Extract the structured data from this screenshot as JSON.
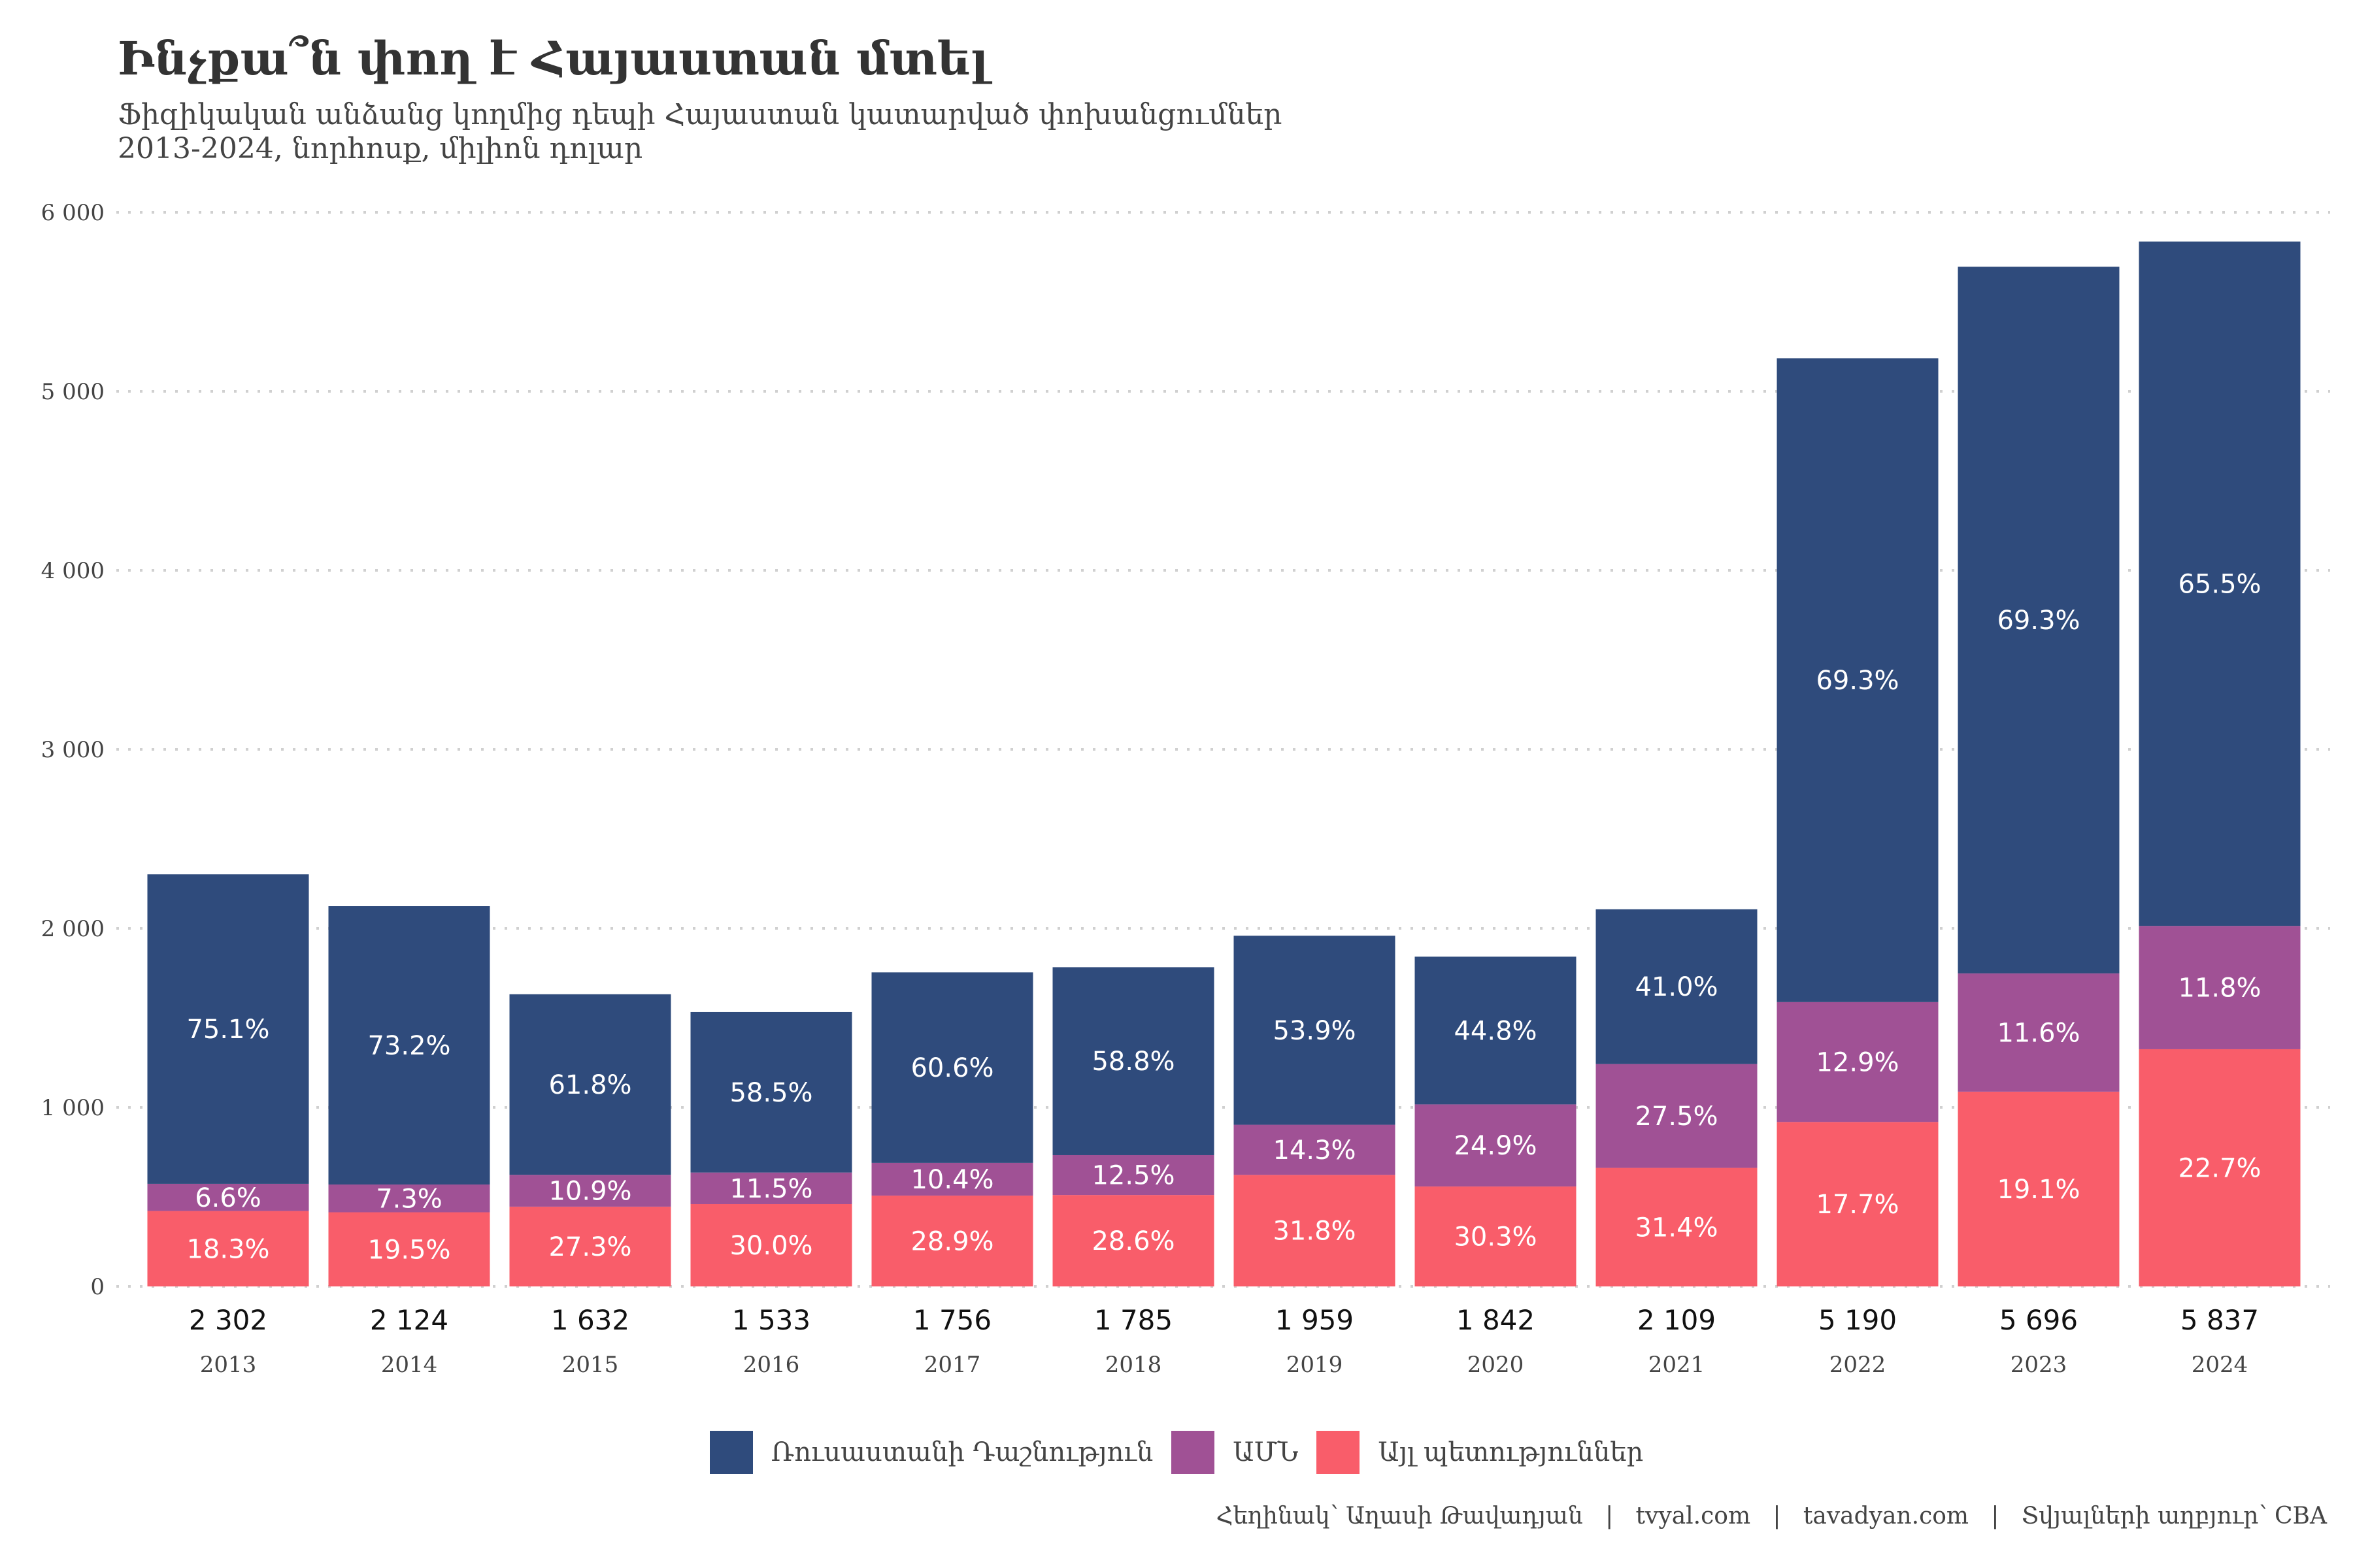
{
  "header": {
    "title": "Ինչքա՞ն փող է Հայաստան մտել",
    "subtitle_line1": "Ֆիզիկական անձանց կողմից դեպի Հայաստան կատարված փոխանցումներ",
    "subtitle_line2": "2013-2024, նորհոսք, միլիոն դոլար"
  },
  "legend": [
    {
      "label": "Ռուսաստանի Դաշնություն",
      "color": "#2f4b7c"
    },
    {
      "label": "ԱՄՆ",
      "color": "#a05195"
    },
    {
      "label": "Այլ պետություններ",
      "color": "#f95d6a"
    }
  ],
  "caption": "Հեղինակ՝ Աղասի Թավադյան   |   tvyal.com   |   tavadyan.com   |   Տվյալների աղբյուր՝ CBA",
  "chart_data": {
    "type": "bar",
    "stacked": true,
    "title": "Ինչքա՞ն փող է Հայաստան մտել",
    "subtitle": "Ֆիզիկական անձանց կողմից դեպի Հայաստան կատարված փոխանցումներ 2013-2024, նորհոսք, միլիոն դոլար",
    "xlabel": "",
    "ylabel": "",
    "ylim": [
      0,
      6000
    ],
    "yticks": [
      0,
      1000,
      2000,
      3000,
      4000,
      5000,
      6000
    ],
    "ytick_labels": [
      "0",
      "1 000",
      "2 000",
      "3 000",
      "4 000",
      "5 000",
      "6 000"
    ],
    "grid": "horizontal-dotted",
    "legend_position": "bottom",
    "categories": [
      "2013",
      "2014",
      "2015",
      "2016",
      "2017",
      "2018",
      "2019",
      "2020",
      "2021",
      "2022",
      "2023",
      "2024"
    ],
    "totals": [
      2302,
      2124,
      1632,
      1533,
      1756,
      1785,
      1959,
      1842,
      2109,
      5190,
      5696,
      5837
    ],
    "total_labels": [
      "2 302",
      "2 124",
      "1 632",
      "1 533",
      "1 756",
      "1 785",
      "1 959",
      "1 842",
      "2 109",
      "5 190",
      "5 696",
      "5 837"
    ],
    "series": [
      {
        "name": "Այլ պետություններ",
        "color": "#f95d6a",
        "share_pct": [
          18.3,
          19.5,
          27.3,
          30.0,
          28.9,
          28.6,
          31.8,
          30.3,
          31.4,
          17.7,
          19.1,
          22.7
        ],
        "labels": [
          "18.3%",
          "19.5%",
          "27.3%",
          "30.0%",
          "28.9%",
          "28.6%",
          "31.8%",
          "30.3%",
          "31.4%",
          "17.7%",
          "19.1%",
          "22.7%"
        ]
      },
      {
        "name": "ԱՄՆ",
        "color": "#a05195",
        "share_pct": [
          6.6,
          7.3,
          10.9,
          11.5,
          10.4,
          12.5,
          14.3,
          24.9,
          27.5,
          12.9,
          11.6,
          11.8
        ],
        "labels": [
          "6.6%",
          "7.3%",
          "10.9%",
          "11.5%",
          "10.4%",
          "12.5%",
          "14.3%",
          "24.9%",
          "27.5%",
          "12.9%",
          "11.6%",
          "11.8%"
        ]
      },
      {
        "name": "Ռուսաստանի Դաշնություն",
        "color": "#2f4b7c",
        "share_pct": [
          75.1,
          73.2,
          61.8,
          58.5,
          60.6,
          58.8,
          53.9,
          44.8,
          41.0,
          69.3,
          69.3,
          65.5
        ],
        "labels": [
          "75.1%",
          "73.2%",
          "61.8%",
          "58.5%",
          "60.6%",
          "58.8%",
          "53.9%",
          "44.8%",
          "41.0%",
          "69.3%",
          "69.3%",
          "65.5%"
        ]
      }
    ]
  }
}
